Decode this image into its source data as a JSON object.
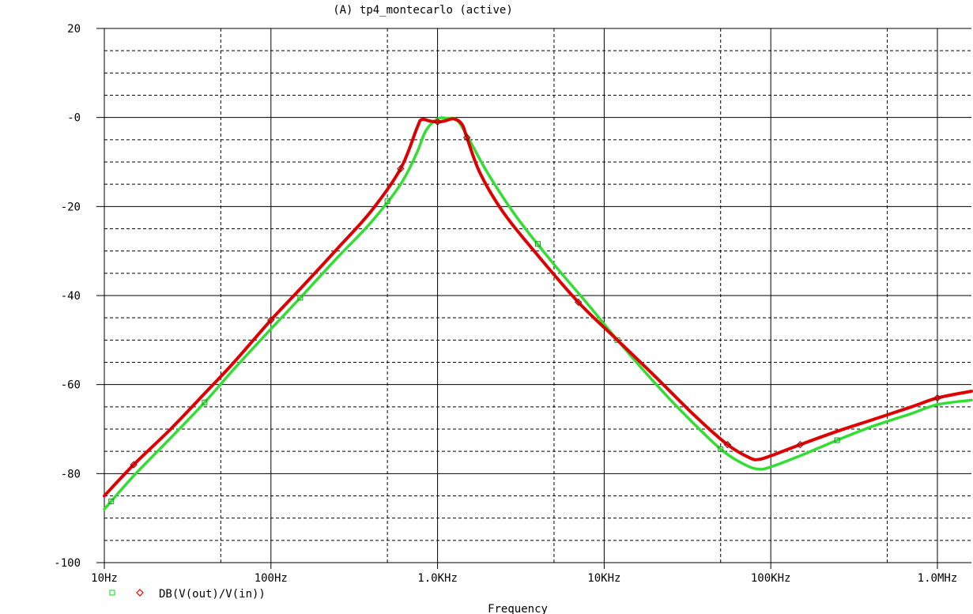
{
  "title": "(A) tp4_montecarlo (active)",
  "legend_label": "DB(V(out)/V(in))",
  "colors": {
    "run_green": "#33dd33",
    "run_red": "#dd0000",
    "grid": "#000000",
    "background": "#ffffff"
  },
  "chart_data": {
    "type": "line",
    "title": "(A) tp4_montecarlo (active)",
    "xlabel": "Frequency",
    "ylabel": "",
    "x_scale": "log",
    "xlim": [
      10,
      1600000
    ],
    "ylim": [
      -100,
      20
    ],
    "grid": true,
    "x_ticks": [
      {
        "value": 10,
        "label": "10Hz"
      },
      {
        "value": 100,
        "label": "100Hz"
      },
      {
        "value": 1000,
        "label": "1.0KHz"
      },
      {
        "value": 10000,
        "label": "10KHz"
      },
      {
        "value": 100000,
        "label": "100KHz"
      },
      {
        "value": 1000000,
        "label": "1.0MHz"
      }
    ],
    "y_ticks": [
      {
        "value": 20,
        "label": "20"
      },
      {
        "value": 0,
        "label": "-0"
      },
      {
        "value": -20,
        "label": "-20"
      },
      {
        "value": -40,
        "label": "-40"
      },
      {
        "value": -60,
        "label": "-60"
      },
      {
        "value": -80,
        "label": "-80"
      },
      {
        "value": -100,
        "label": "-100"
      }
    ],
    "legend": {
      "placement": "bottom-left",
      "label": "DB(V(out)/V(in))"
    },
    "series": [
      {
        "color": "#33dd33",
        "marker": "square",
        "x": [
          10,
          15,
          25,
          40,
          60,
          100,
          150,
          250,
          400,
          600,
          750,
          850,
          1000,
          1150,
          1300,
          1500,
          2000,
          3000,
          5000,
          8000,
          12000,
          20000,
          30000,
          50000,
          70000,
          85000,
          100000,
          150000,
          250000,
          400000,
          700000,
          1000000,
          1600000
        ],
        "y": [
          -88,
          -80.5,
          -72,
          -64,
          -56.5,
          -47.5,
          -40.5,
          -31.5,
          -23.5,
          -15,
          -8,
          -3,
          -0.3,
          -0.2,
          -0.5,
          -4,
          -12.5,
          -22.5,
          -33,
          -42,
          -50,
          -59.5,
          -66.5,
          -74.5,
          -78,
          -79,
          -78.5,
          -76,
          -72.5,
          -69.5,
          -66.5,
          -64.5,
          -63.5
        ],
        "markers_x": [
          11,
          40,
          150,
          500,
          4000,
          12000,
          50000,
          250000
        ]
      },
      {
        "color": "#dd0000",
        "marker": "diamond",
        "x": [
          10,
          15,
          25,
          40,
          60,
          100,
          150,
          250,
          400,
          600,
          750,
          800,
          900,
          1000,
          1100,
          1250,
          1400,
          1500,
          1800,
          2500,
          4000,
          7000,
          12000,
          20000,
          35000,
          55000,
          75000,
          85000,
          100000,
          150000,
          250000,
          400000,
          700000,
          1000000,
          1600000
        ],
        "y": [
          -85,
          -78,
          -70,
          -62,
          -55,
          -45.5,
          -38.5,
          -29.5,
          -21,
          -11.5,
          -2.5,
          -0.5,
          -0.8,
          -1,
          -0.8,
          -0.3,
          -1.5,
          -4.5,
          -12.5,
          -21.5,
          -31,
          -41.5,
          -50,
          -58,
          -67,
          -73.5,
          -76.5,
          -76.8,
          -76,
          -73.5,
          -70.5,
          -68,
          -65,
          -63,
          -61.5
        ]
      }
    ]
  }
}
